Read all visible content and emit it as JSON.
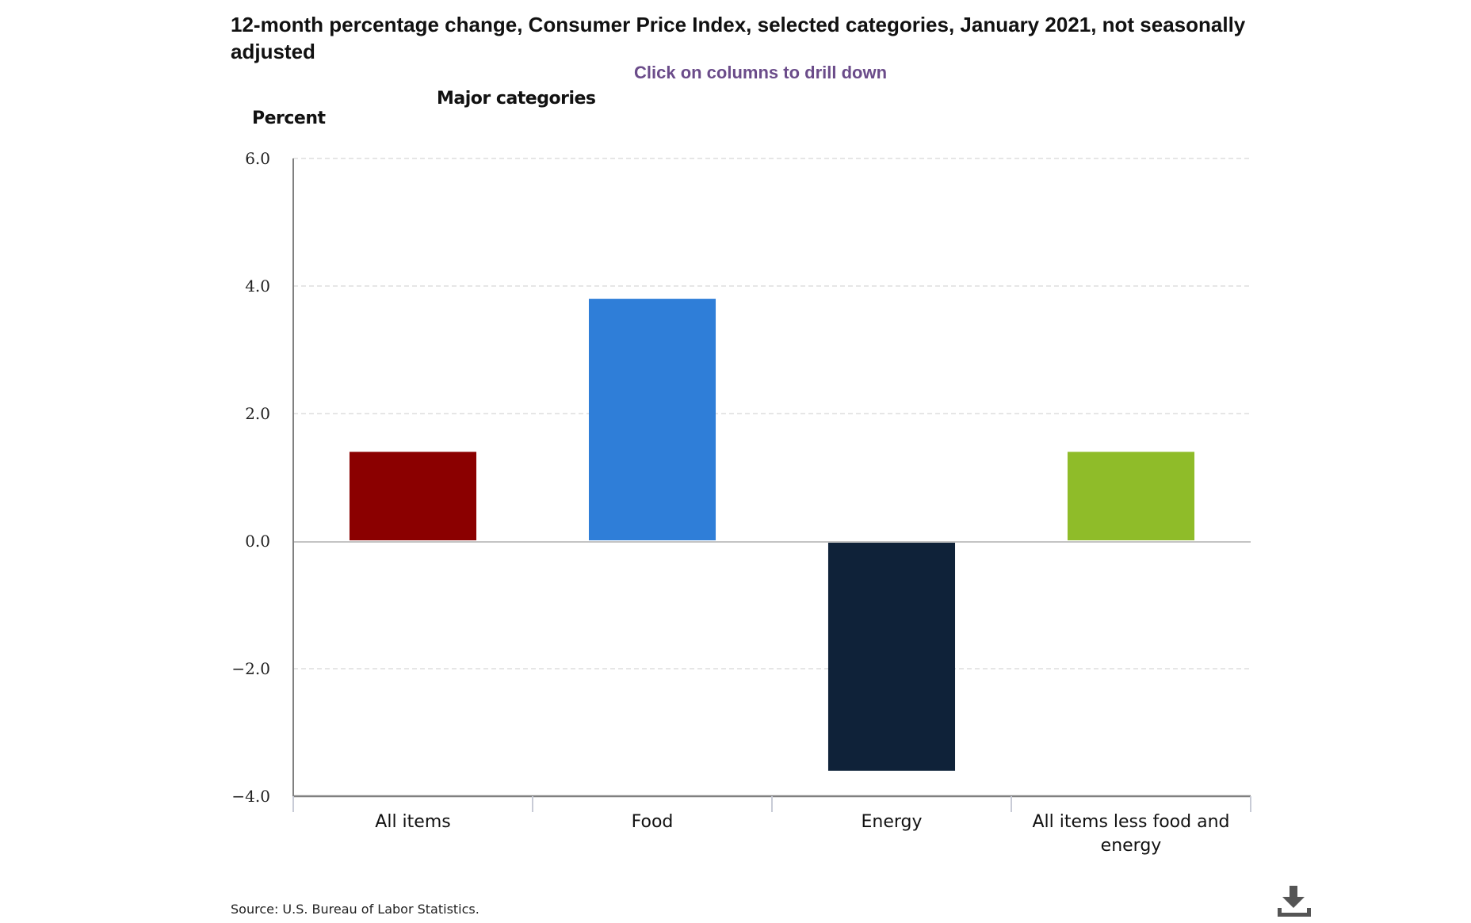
{
  "header": {
    "title": "12-month percentage change, Consumer Price Index, selected categories, January 2021, not seasonally adjusted",
    "drill_hint": "Click on columns to drill down",
    "subtitle": "Major categories",
    "y_axis_label": "Percent"
  },
  "footer": {
    "source": "Source: U.S. Bureau of Labor Statistics.",
    "download_icon": "download-icon"
  },
  "chart_data": {
    "type": "bar",
    "title": "12-month percentage change, Consumer Price Index, selected categories, January 2021, not seasonally adjusted",
    "subtitle": "Major categories",
    "xlabel": "",
    "ylabel": "Percent",
    "categories": [
      "All items",
      "Food",
      "Energy",
      "All items less food and energy"
    ],
    "category_label_lines": [
      [
        "All items"
      ],
      [
        "Food"
      ],
      [
        "Energy"
      ],
      [
        "All items less food and",
        "energy"
      ]
    ],
    "values": [
      1.4,
      3.8,
      -3.6,
      1.4
    ],
    "colors": [
      "#8b0000",
      "#2f7ed8",
      "#0f2239",
      "#8fbc29"
    ],
    "ylim": [
      -4.0,
      6.0
    ],
    "yticks": [
      6.0,
      4.0,
      2.0,
      0.0,
      -2.0,
      -4.0
    ],
    "ytick_labels": [
      "6.0",
      "4.0",
      "2.0",
      "0.0",
      "−2.0",
      "−4.0"
    ],
    "grid": true,
    "legend": "none"
  }
}
